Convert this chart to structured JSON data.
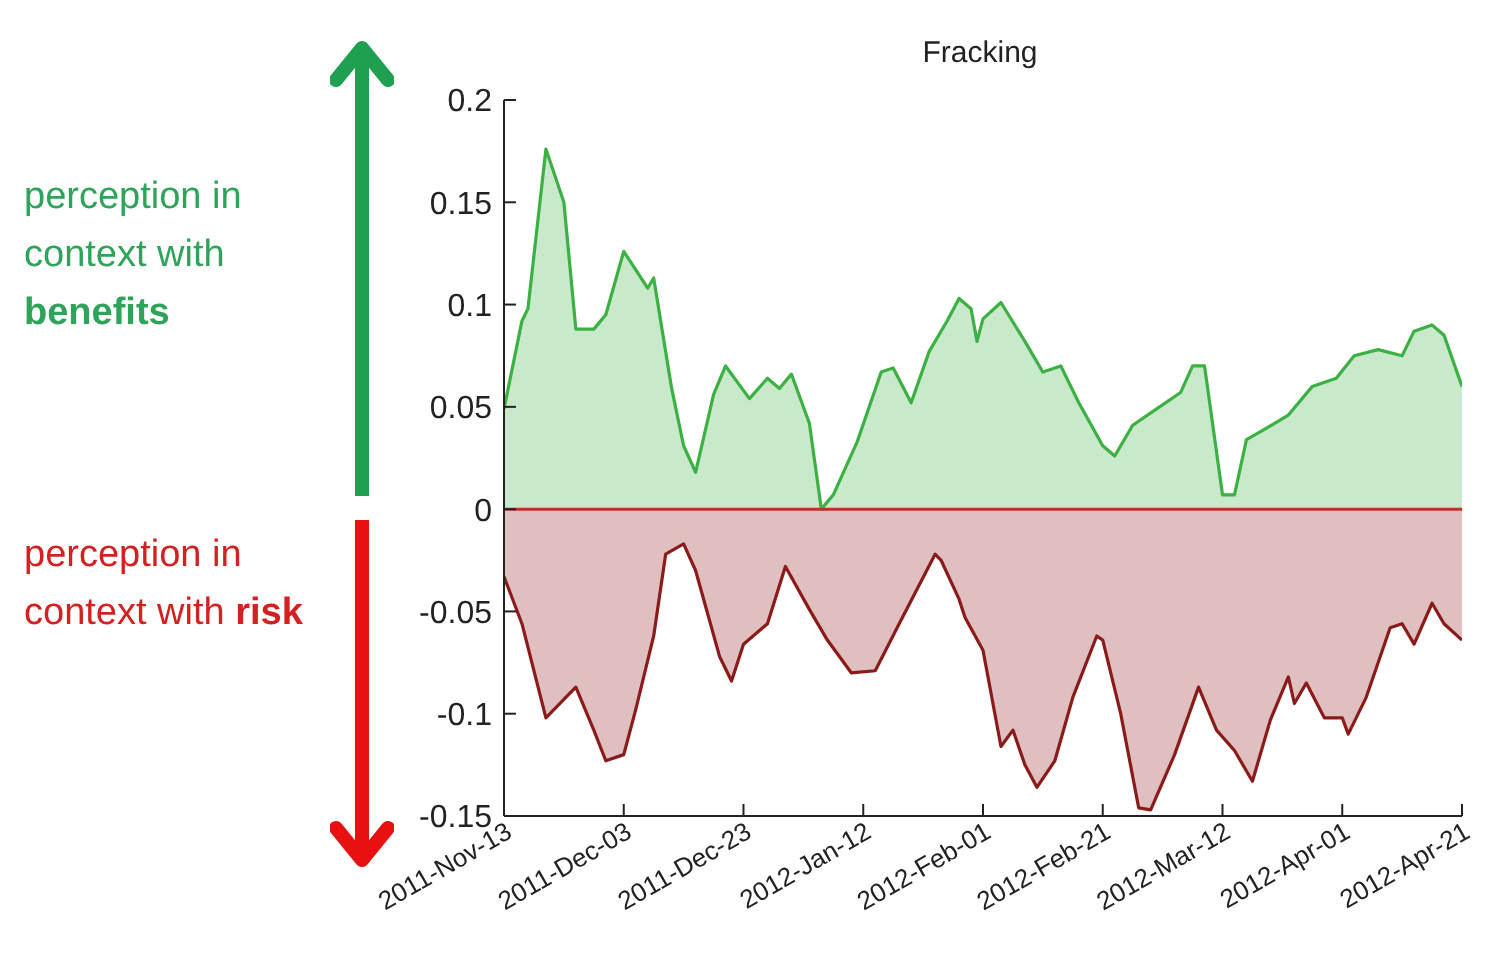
{
  "chart_data": {
    "type": "area",
    "title": "Fracking",
    "annotations": [
      "perception in context with benefits",
      "perception in context with risk"
    ],
    "xlim": [
      "2011-11-13",
      "2012-04-21"
    ],
    "xticks": [
      {
        "value": "2011-11-13",
        "label": "2011-Nov-13"
      },
      {
        "value": "2011-12-03",
        "label": "2011-Dec-03"
      },
      {
        "value": "2011-12-23",
        "label": "2011-Dec-23"
      },
      {
        "value": "2012-01-12",
        "label": "2012-Jan-12"
      },
      {
        "value": "2012-02-01",
        "label": "2012-Feb-01"
      },
      {
        "value": "2012-02-21",
        "label": "2012-Feb-21"
      },
      {
        "value": "2012-03-12",
        "label": "2012-Mar-12"
      },
      {
        "value": "2012-04-01",
        "label": "2012-Apr-01"
      },
      {
        "value": "2012-04-21",
        "label": "2012-Apr-21"
      }
    ],
    "ylim": [
      -0.15,
      0.2
    ],
    "yticks": [
      -0.15,
      -0.1,
      -0.05,
      0,
      0.05,
      0.1,
      0.15,
      0.2
    ],
    "ref_lines": [
      {
        "axis": "y",
        "value": 0,
        "color": "#c0302a"
      }
    ],
    "series": [
      {
        "color": "#3cb043",
        "x": [
          "2011-11-13",
          "2011-11-16",
          "2011-11-17",
          "2011-11-20",
          "2011-11-23",
          "2011-11-25",
          "2011-11-28",
          "2011-11-30",
          "2011-12-03",
          "2011-12-07",
          "2011-12-08",
          "2011-12-11",
          "2011-12-13",
          "2011-12-15",
          "2011-12-18",
          "2011-12-20",
          "2011-12-24",
          "2011-12-27",
          "2011-12-29",
          "2011-12-31",
          "2012-01-03",
          "2012-01-05",
          "2012-01-07",
          "2012-01-11",
          "2012-01-15",
          "2012-01-17",
          "2012-01-20",
          "2012-01-23",
          "2012-01-26",
          "2012-01-28",
          "2012-01-30",
          "2012-01-31",
          "2012-02-01",
          "2012-02-04",
          "2012-02-08",
          "2012-02-11",
          "2012-02-14",
          "2012-02-17",
          "2012-02-21",
          "2012-02-23",
          "2012-02-26",
          "2012-03-01",
          "2012-03-05",
          "2012-03-07",
          "2012-03-09",
          "2012-03-12",
          "2012-03-14",
          "2012-03-16",
          "2012-03-19",
          "2012-03-23",
          "2012-03-27",
          "2012-03-31",
          "2012-04-03",
          "2012-04-07",
          "2012-04-11",
          "2012-04-13",
          "2012-04-16",
          "2012-04-18",
          "2012-04-21"
        ],
        "values": [
          0.049,
          0.092,
          0.098,
          0.176,
          0.15,
          0.088,
          0.088,
          0.095,
          0.126,
          0.108,
          0.113,
          0.059,
          0.031,
          0.018,
          0.056,
          0.07,
          0.054,
          0.064,
          0.059,
          0.066,
          0.042,
          0.0,
          0.007,
          0.033,
          0.067,
          0.069,
          0.052,
          0.077,
          0.092,
          0.103,
          0.098,
          0.082,
          0.093,
          0.101,
          0.082,
          0.067,
          0.07,
          0.052,
          0.031,
          0.026,
          0.041,
          0.049,
          0.057,
          0.07,
          0.07,
          0.007,
          0.007,
          0.034,
          0.039,
          0.046,
          0.06,
          0.064,
          0.075,
          0.078,
          0.075,
          0.087,
          0.09,
          0.085,
          0.06
        ]
      },
      {
        "color": "#8b1a1a",
        "x": [
          "2011-11-13",
          "2011-11-16",
          "2011-11-20",
          "2011-11-23",
          "2011-11-25",
          "2011-11-28",
          "2011-11-30",
          "2011-12-03",
          "2011-12-05",
          "2011-12-08",
          "2011-12-10",
          "2011-12-13",
          "2011-12-15",
          "2011-12-19",
          "2011-12-21",
          "2011-12-23",
          "2011-12-27",
          "2011-12-30",
          "2012-01-03",
          "2012-01-06",
          "2012-01-10",
          "2012-01-14",
          "2012-01-18",
          "2012-01-24",
          "2012-01-25",
          "2012-01-28",
          "2012-01-29",
          "2012-02-01",
          "2012-02-04",
          "2012-02-06",
          "2012-02-08",
          "2012-02-10",
          "2012-02-13",
          "2012-02-16",
          "2012-02-20",
          "2012-02-21",
          "2012-02-24",
          "2012-02-27",
          "2012-02-29",
          "2012-03-04",
          "2012-03-08",
          "2012-03-11",
          "2012-03-14",
          "2012-03-17",
          "2012-03-20",
          "2012-03-23",
          "2012-03-24",
          "2012-03-26",
          "2012-03-29",
          "2012-04-01",
          "2012-04-02",
          "2012-04-05",
          "2012-04-09",
          "2012-04-11",
          "2012-04-13",
          "2012-04-16",
          "2012-04-18",
          "2012-04-21"
        ],
        "values": [
          -0.033,
          -0.056,
          -0.102,
          -0.093,
          -0.087,
          -0.108,
          -0.123,
          -0.12,
          -0.098,
          -0.062,
          -0.022,
          -0.017,
          -0.03,
          -0.072,
          -0.084,
          -0.066,
          -0.056,
          -0.028,
          -0.049,
          -0.064,
          -0.08,
          -0.079,
          -0.056,
          -0.022,
          -0.025,
          -0.044,
          -0.053,
          -0.069,
          -0.116,
          -0.108,
          -0.125,
          -0.136,
          -0.123,
          -0.092,
          -0.062,
          -0.064,
          -0.1,
          -0.146,
          -0.147,
          -0.12,
          -0.087,
          -0.108,
          -0.118,
          -0.133,
          -0.103,
          -0.082,
          -0.095,
          -0.085,
          -0.102,
          -0.102,
          -0.11,
          -0.092,
          -0.058,
          -0.056,
          -0.066,
          -0.046,
          -0.056,
          -0.064
        ]
      }
    ]
  }
}
